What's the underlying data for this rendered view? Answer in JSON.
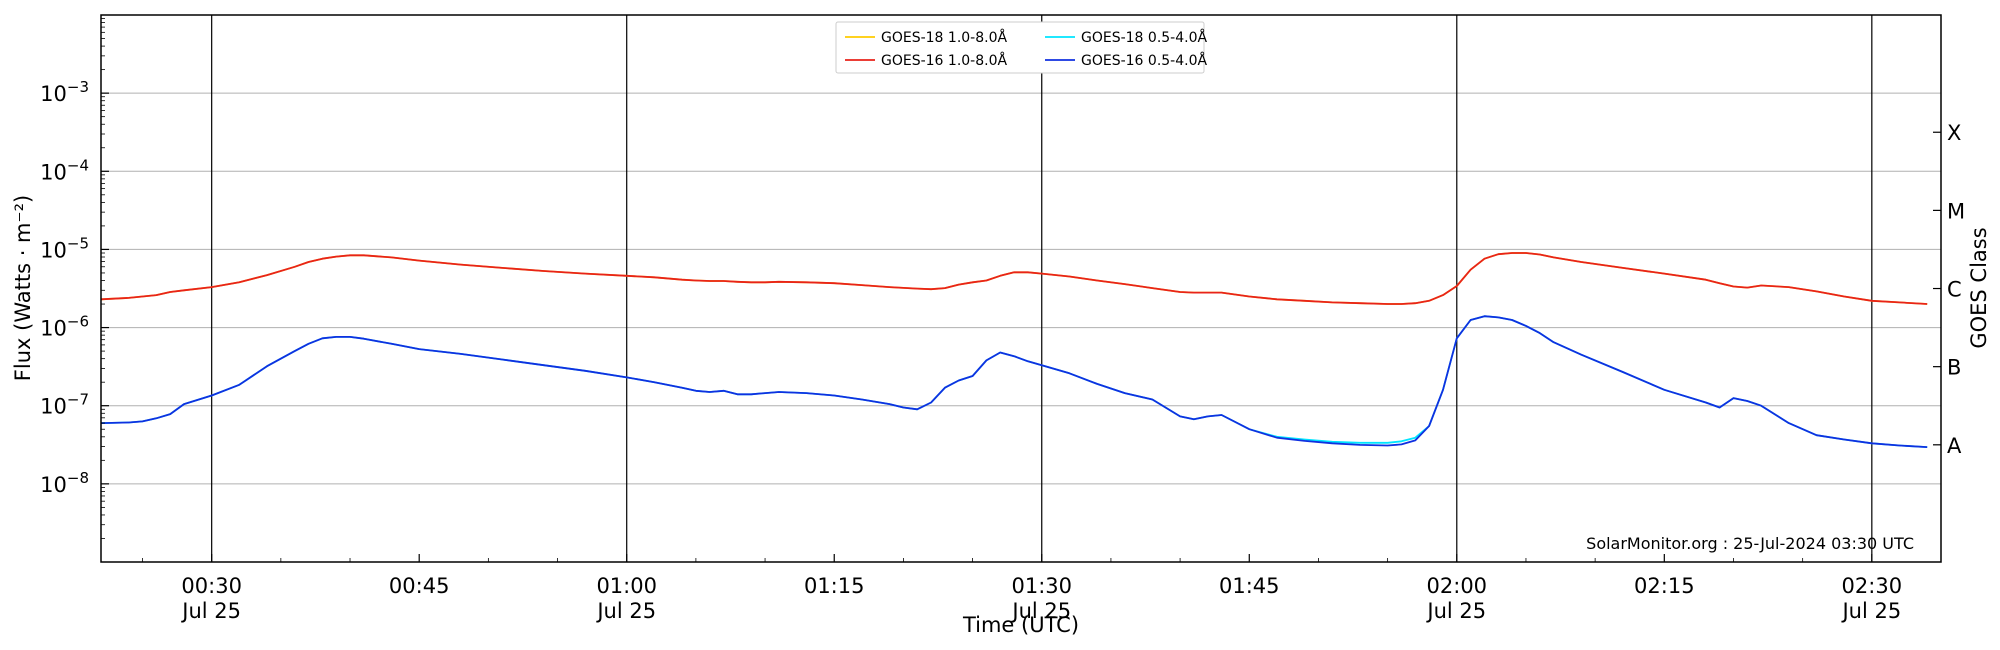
{
  "chart_data": {
    "type": "line",
    "title": "",
    "xlabel": "Time (UTC)",
    "ylabel": "Flux (Watts · m⁻²)",
    "y2label": "GOES Class",
    "yscale": "log",
    "ylim": [
      1e-09,
      0.01
    ],
    "xlim": [
      "00:22",
      "02:35"
    ],
    "grid": "horizontal",
    "legend_position": "top-center",
    "credit": "SolarMonitor.org : 25-Jul-2024 03:30 UTC",
    "x_ticks": [
      {
        "time": "00:30",
        "date": "Jul 25",
        "major": true
      },
      {
        "time": "00:45",
        "date": "",
        "major": false
      },
      {
        "time": "01:00",
        "date": "Jul 25",
        "major": true
      },
      {
        "time": "01:15",
        "date": "",
        "major": false
      },
      {
        "time": "01:30",
        "date": "Jul 25",
        "major": true
      },
      {
        "time": "01:45",
        "date": "",
        "major": false
      },
      {
        "time": "02:00",
        "date": "Jul 25",
        "major": true
      },
      {
        "time": "02:15",
        "date": "",
        "major": false
      },
      {
        "time": "02:30",
        "date": "Jul 25",
        "major": true
      }
    ],
    "y_ticks": [
      {
        "value": 1e-08,
        "base": "10",
        "exp": "−8"
      },
      {
        "value": 1e-07,
        "base": "10",
        "exp": "−7"
      },
      {
        "value": 1e-06,
        "base": "10",
        "exp": "−6"
      },
      {
        "value": 1e-05,
        "base": "10",
        "exp": "−5"
      },
      {
        "value": 0.0001,
        "base": "10",
        "exp": "−4"
      },
      {
        "value": 0.001,
        "base": "10",
        "exp": "−3"
      }
    ],
    "goes_classes": [
      {
        "label": "A",
        "value": 3.16e-08
      },
      {
        "label": "B",
        "value": 3.16e-07
      },
      {
        "label": "C",
        "value": 3.16e-06
      },
      {
        "label": "M",
        "value": 3.16e-05
      },
      {
        "label": "X",
        "value": 0.000316
      }
    ],
    "series": [
      {
        "name": "GOES-18 1.0-8.0Å",
        "color": "#ffcc00",
        "x": [
          "00:22",
          "00:24",
          "00:26",
          "00:27",
          "00:28",
          "00:30",
          "00:32",
          "00:34",
          "00:36",
          "00:37",
          "00:38",
          "00:39",
          "00:40",
          "00:41",
          "00:43",
          "00:45",
          "00:48",
          "00:51",
          "00:54",
          "00:57",
          "01:00",
          "01:02",
          "01:04",
          "01:05",
          "01:06",
          "01:07",
          "01:08",
          "01:09",
          "01:10",
          "01:11",
          "01:13",
          "01:15",
          "01:17",
          "01:19",
          "01:21",
          "01:22",
          "01:23",
          "01:24",
          "01:25",
          "01:26",
          "01:27",
          "01:28",
          "01:29",
          "01:30",
          "01:32",
          "01:34",
          "01:36",
          "01:38",
          "01:40",
          "01:41",
          "01:42",
          "01:43",
          "01:45",
          "01:47",
          "01:49",
          "01:51",
          "01:53",
          "01:55",
          "01:56",
          "01:57",
          "01:58",
          "01:59",
          "02:00",
          "02:01",
          "02:02",
          "02:03",
          "02:04",
          "02:05",
          "02:06",
          "02:07",
          "02:09",
          "02:12",
          "02:15",
          "02:18",
          "02:19",
          "02:20",
          "02:21",
          "02:22",
          "02:24",
          "02:26",
          "02:28",
          "02:30",
          "02:32",
          "02:34"
        ],
        "values": [
          2.3e-06,
          2.4e-06,
          2.6e-06,
          2.85e-06,
          3e-06,
          3.3e-06,
          3.8e-06,
          4.7e-06,
          6e-06,
          6.9e-06,
          7.6e-06,
          8.1e-06,
          8.4e-06,
          8.4e-06,
          7.9e-06,
          7.2e-06,
          6.4e-06,
          5.8e-06,
          5.3e-06,
          4.9e-06,
          4.6e-06,
          4.4e-06,
          4.1e-06,
          4e-06,
          3.95e-06,
          3.95e-06,
          3.85e-06,
          3.8e-06,
          3.8e-06,
          3.85e-06,
          3.8e-06,
          3.7e-06,
          3.5e-06,
          3.3e-06,
          3.15e-06,
          3.1e-06,
          3.2e-06,
          3.55e-06,
          3.8e-06,
          4e-06,
          4.6e-06,
          5.1e-06,
          5.1e-06,
          4.9e-06,
          4.5e-06,
          4e-06,
          3.6e-06,
          3.2e-06,
          2.85e-06,
          2.8e-06,
          2.8e-06,
          2.8e-06,
          2.5e-06,
          2.3e-06,
          2.2e-06,
          2.1e-06,
          2.05e-06,
          2e-06,
          2e-06,
          2.05e-06,
          2.2e-06,
          2.6e-06,
          3.4e-06,
          5.5e-06,
          7.6e-06,
          8.7e-06,
          9e-06,
          9e-06,
          8.6e-06,
          7.9e-06,
          6.9e-06,
          5.8e-06,
          4.9e-06,
          4.1e-06,
          3.7e-06,
          3.35e-06,
          3.25e-06,
          3.45e-06,
          3.3e-06,
          2.9e-06,
          2.5e-06,
          2.2e-06,
          2.1e-06,
          2e-06
        ]
      },
      {
        "name": "GOES-18 0.5-4.0Å",
        "color": "#00e5ff",
        "x": [
          "00:22",
          "00:24",
          "00:25",
          "00:26",
          "00:27",
          "00:28",
          "00:30",
          "00:32",
          "00:34",
          "00:36",
          "00:37",
          "00:38",
          "00:39",
          "00:40",
          "00:41",
          "00:43",
          "00:45",
          "00:48",
          "00:51",
          "00:54",
          "00:57",
          "01:00",
          "01:02",
          "01:04",
          "01:05",
          "01:06",
          "01:07",
          "01:08",
          "01:09",
          "01:10",
          "01:11",
          "01:13",
          "01:15",
          "01:17",
          "01:19",
          "01:20",
          "01:21",
          "01:22",
          "01:23",
          "01:24",
          "01:25",
          "01:26",
          "01:27",
          "01:28",
          "01:29",
          "01:30",
          "01:32",
          "01:34",
          "01:36",
          "01:38",
          "01:40",
          "01:41",
          "01:42",
          "01:43",
          "01:45",
          "01:47",
          "01:49",
          "01:51",
          "01:53",
          "01:55",
          "01:56",
          "01:57",
          "01:58",
          "01:59",
          "02:00",
          "02:01",
          "02:02",
          "02:03",
          "02:04",
          "02:05",
          "02:06",
          "02:07",
          "02:09",
          "02:12",
          "02:15",
          "02:18",
          "02:19",
          "02:20",
          "02:21",
          "02:22",
          "02:24",
          "02:26",
          "02:28",
          "02:30",
          "02:32",
          "02:34"
        ],
        "values": [
          6e-08,
          6.1e-08,
          6.3e-08,
          6.9e-08,
          7.8e-08,
          1.05e-07,
          1.35e-07,
          1.85e-07,
          3.2e-07,
          5e-07,
          6.2e-07,
          7.3e-07,
          7.6e-07,
          7.6e-07,
          7.2e-07,
          6.2e-07,
          5.3e-07,
          4.6e-07,
          3.9e-07,
          3.3e-07,
          2.8e-07,
          2.3e-07,
          2e-07,
          1.7e-07,
          1.55e-07,
          1.5e-07,
          1.55e-07,
          1.4e-07,
          1.4e-07,
          1.45e-07,
          1.5e-07,
          1.45e-07,
          1.35e-07,
          1.2e-07,
          1.05e-07,
          9.5e-08,
          9e-08,
          1.1e-07,
          1.7e-07,
          2.1e-07,
          2.4e-07,
          3.8e-07,
          4.8e-07,
          4.3e-07,
          3.7e-07,
          3.3e-07,
          2.6e-07,
          1.9e-07,
          1.45e-07,
          1.2e-07,
          7.3e-08,
          6.7e-08,
          7.3e-08,
          7.6e-08,
          5e-08,
          4e-08,
          3.7e-08,
          3.45e-08,
          3.35e-08,
          3.35e-08,
          3.5e-08,
          3.9e-08,
          5.5e-08,
          1.6e-07,
          7.3e-07,
          1.25e-06,
          1.4e-06,
          1.35e-06,
          1.25e-06,
          1.05e-06,
          8.5e-07,
          6.5e-07,
          4.5e-07,
          2.7e-07,
          1.6e-07,
          1.1e-07,
          9.5e-08,
          1.25e-07,
          1.15e-07,
          1e-07,
          6e-08,
          4.2e-08,
          3.7e-08,
          3.3e-08,
          3.1e-08,
          2.95e-08
        ]
      },
      {
        "name": "GOES-16 1.0-8.0Å",
        "color": "#e8231a",
        "x": [
          "00:22",
          "00:24",
          "00:26",
          "00:27",
          "00:28",
          "00:30",
          "00:32",
          "00:34",
          "00:36",
          "00:37",
          "00:38",
          "00:39",
          "00:40",
          "00:41",
          "00:43",
          "00:45",
          "00:48",
          "00:51",
          "00:54",
          "00:57",
          "01:00",
          "01:02",
          "01:04",
          "01:05",
          "01:06",
          "01:07",
          "01:08",
          "01:09",
          "01:10",
          "01:11",
          "01:13",
          "01:15",
          "01:17",
          "01:19",
          "01:21",
          "01:22",
          "01:23",
          "01:24",
          "01:25",
          "01:26",
          "01:27",
          "01:28",
          "01:29",
          "01:30",
          "01:32",
          "01:34",
          "01:36",
          "01:38",
          "01:40",
          "01:41",
          "01:42",
          "01:43",
          "01:45",
          "01:47",
          "01:49",
          "01:51",
          "01:53",
          "01:55",
          "01:56",
          "01:57",
          "01:58",
          "01:59",
          "02:00",
          "02:01",
          "02:02",
          "02:03",
          "02:04",
          "02:05",
          "02:06",
          "02:07",
          "02:09",
          "02:12",
          "02:15",
          "02:18",
          "02:19",
          "02:20",
          "02:21",
          "02:22",
          "02:24",
          "02:26",
          "02:28",
          "02:30",
          "02:32",
          "02:34"
        ],
        "values": [
          2.3e-06,
          2.4e-06,
          2.6e-06,
          2.85e-06,
          3e-06,
          3.3e-06,
          3.8e-06,
          4.7e-06,
          6e-06,
          6.9e-06,
          7.6e-06,
          8.1e-06,
          8.4e-06,
          8.4e-06,
          7.9e-06,
          7.2e-06,
          6.4e-06,
          5.8e-06,
          5.3e-06,
          4.9e-06,
          4.6e-06,
          4.4e-06,
          4.1e-06,
          4e-06,
          3.95e-06,
          3.95e-06,
          3.85e-06,
          3.8e-06,
          3.8e-06,
          3.85e-06,
          3.8e-06,
          3.7e-06,
          3.5e-06,
          3.3e-06,
          3.15e-06,
          3.1e-06,
          3.2e-06,
          3.55e-06,
          3.8e-06,
          4e-06,
          4.6e-06,
          5.1e-06,
          5.1e-06,
          4.9e-06,
          4.5e-06,
          4e-06,
          3.6e-06,
          3.2e-06,
          2.85e-06,
          2.8e-06,
          2.8e-06,
          2.8e-06,
          2.5e-06,
          2.3e-06,
          2.2e-06,
          2.1e-06,
          2.05e-06,
          2e-06,
          2e-06,
          2.05e-06,
          2.2e-06,
          2.6e-06,
          3.4e-06,
          5.5e-06,
          7.6e-06,
          8.7e-06,
          9e-06,
          9e-06,
          8.6e-06,
          7.9e-06,
          6.9e-06,
          5.8e-06,
          4.9e-06,
          4.1e-06,
          3.7e-06,
          3.35e-06,
          3.25e-06,
          3.45e-06,
          3.3e-06,
          2.9e-06,
          2.5e-06,
          2.2e-06,
          2.1e-06,
          2e-06
        ]
      },
      {
        "name": "GOES-16 0.5-4.0Å",
        "color": "#1030e0",
        "x": [
          "00:22",
          "00:24",
          "00:25",
          "00:26",
          "00:27",
          "00:28",
          "00:30",
          "00:32",
          "00:34",
          "00:36",
          "00:37",
          "00:38",
          "00:39",
          "00:40",
          "00:41",
          "00:43",
          "00:45",
          "00:48",
          "00:51",
          "00:54",
          "00:57",
          "01:00",
          "01:02",
          "01:04",
          "01:05",
          "01:06",
          "01:07",
          "01:08",
          "01:09",
          "01:10",
          "01:11",
          "01:13",
          "01:15",
          "01:17",
          "01:19",
          "01:20",
          "01:21",
          "01:22",
          "01:23",
          "01:24",
          "01:25",
          "01:26",
          "01:27",
          "01:28",
          "01:29",
          "01:30",
          "01:32",
          "01:34",
          "01:36",
          "01:38",
          "01:40",
          "01:41",
          "01:42",
          "01:43",
          "01:45",
          "01:47",
          "01:49",
          "01:51",
          "01:53",
          "01:55",
          "01:56",
          "01:57",
          "01:58",
          "01:59",
          "02:00",
          "02:01",
          "02:02",
          "02:03",
          "02:04",
          "02:05",
          "02:06",
          "02:07",
          "02:09",
          "02:12",
          "02:15",
          "02:18",
          "02:19",
          "02:20",
          "02:21",
          "02:22",
          "02:24",
          "02:26",
          "02:28",
          "02:30",
          "02:32",
          "02:34"
        ],
        "values": [
          6e-08,
          6.1e-08,
          6.3e-08,
          6.9e-08,
          7.8e-08,
          1.05e-07,
          1.35e-07,
          1.85e-07,
          3.2e-07,
          5e-07,
          6.2e-07,
          7.3e-07,
          7.6e-07,
          7.6e-07,
          7.2e-07,
          6.2e-07,
          5.3e-07,
          4.6e-07,
          3.9e-07,
          3.3e-07,
          2.8e-07,
          2.3e-07,
          2e-07,
          1.7e-07,
          1.55e-07,
          1.5e-07,
          1.55e-07,
          1.4e-07,
          1.4e-07,
          1.45e-07,
          1.5e-07,
          1.45e-07,
          1.35e-07,
          1.2e-07,
          1.05e-07,
          9.5e-08,
          9e-08,
          1.1e-07,
          1.7e-07,
          2.1e-07,
          2.4e-07,
          3.8e-07,
          4.8e-07,
          4.3e-07,
          3.7e-07,
          3.3e-07,
          2.6e-07,
          1.9e-07,
          1.45e-07,
          1.2e-07,
          7.3e-08,
          6.7e-08,
          7.3e-08,
          7.6e-08,
          5e-08,
          3.9e-08,
          3.55e-08,
          3.3e-08,
          3.15e-08,
          3.1e-08,
          3.2e-08,
          3.6e-08,
          5.5e-08,
          1.6e-07,
          7.3e-07,
          1.25e-06,
          1.4e-06,
          1.35e-06,
          1.25e-06,
          1.05e-06,
          8.5e-07,
          6.5e-07,
          4.5e-07,
          2.7e-07,
          1.6e-07,
          1.1e-07,
          9.5e-08,
          1.25e-07,
          1.15e-07,
          1e-07,
          6e-08,
          4.2e-08,
          3.7e-08,
          3.3e-08,
          3.1e-08,
          2.95e-08
        ]
      }
    ]
  }
}
